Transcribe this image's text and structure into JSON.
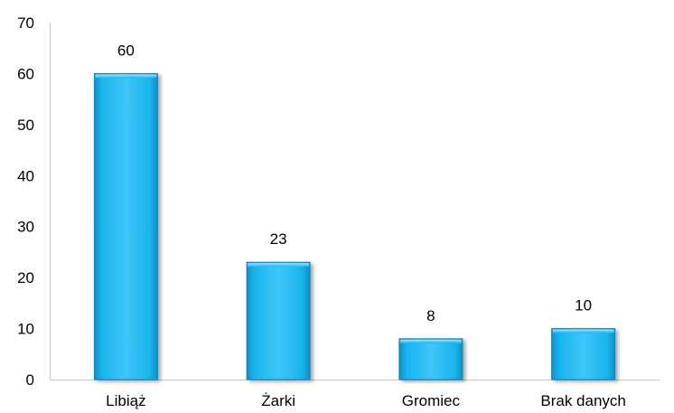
{
  "chart_data": {
    "type": "bar",
    "categories": [
      "Libiąż",
      "Żarki",
      "Gromiec",
      "Brak danych"
    ],
    "values": [
      60,
      23,
      8,
      10
    ],
    "data_labels": [
      "60",
      "23",
      "8",
      "10"
    ],
    "yticks": [
      "0",
      "10",
      "20",
      "30",
      "40",
      "50",
      "60",
      "70"
    ],
    "ylim": [
      0,
      70
    ],
    "title": "",
    "xlabel": "",
    "ylabel": "",
    "grid": false,
    "legend": "none",
    "bar_color": "#1ab4ee",
    "bar_edge_color": "#0e86b8"
  }
}
